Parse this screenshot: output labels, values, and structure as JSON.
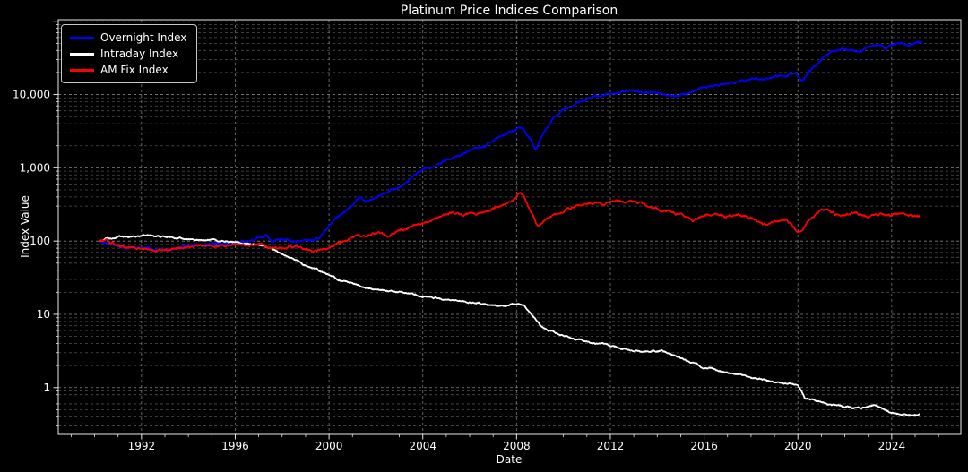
{
  "title": "Platinum Price Indices Comparison",
  "xlabel": "Date",
  "ylabel": "Index Value",
  "axes": {
    "x_major_ticks": [
      1992,
      1996,
      2000,
      2004,
      2008,
      2012,
      2016,
      2020,
      2024
    ],
    "x_tick_labels": [
      "1992",
      "1996",
      "2000",
      "2004",
      "2008",
      "2012",
      "2016",
      "2020",
      "2024"
    ],
    "y_major_ticks": [
      1,
      10,
      100,
      1000,
      10000
    ],
    "y_tick_labels": [
      "1",
      "10",
      "100",
      "1,000",
      "10,000"
    ],
    "background": "#000000",
    "text_color": "#ffffff",
    "grid_color": "#b0b0b0",
    "spine_color": "#e8e8e8"
  },
  "chart_data": {
    "type": "line",
    "title": "Platinum Price Indices Comparison",
    "xlabel": "Date",
    "ylabel": "Index Value",
    "x_scale": "linear",
    "y_scale": "log",
    "xlim": [
      1988.45,
      2026.95
    ],
    "ylim": [
      0.23,
      105000
    ],
    "grid": true,
    "grid_style": "dashed",
    "legend_position": "upper left",
    "background": "#000000",
    "series": [
      {
        "name": "Overnight Index",
        "color": "#0000ff",
        "noise": 0.016,
        "points": [
          [
            1990.2,
            100
          ],
          [
            1990.6,
            92
          ],
          [
            1991,
            84
          ],
          [
            1991.5,
            80
          ],
          [
            1992,
            80
          ],
          [
            1992.6,
            76
          ],
          [
            1993.2,
            76
          ],
          [
            1994,
            88
          ],
          [
            1995,
            90
          ],
          [
            1996,
            95
          ],
          [
            1996.8,
            103
          ],
          [
            1997.3,
            122
          ],
          [
            1997.6,
            100
          ],
          [
            1998,
            106
          ],
          [
            1998.6,
            96
          ],
          [
            1999,
            102
          ],
          [
            1999.6,
            112
          ],
          [
            2000,
            160
          ],
          [
            2000.3,
            210
          ],
          [
            2000.7,
            250
          ],
          [
            2001,
            300
          ],
          [
            2001.3,
            420
          ],
          [
            2001.6,
            360
          ],
          [
            2002,
            400
          ],
          [
            2002.5,
            480
          ],
          [
            2003,
            560
          ],
          [
            2003.5,
            720
          ],
          [
            2004,
            950
          ],
          [
            2004.5,
            1100
          ],
          [
            2005,
            1300
          ],
          [
            2005.5,
            1450
          ],
          [
            2006,
            1750
          ],
          [
            2006.6,
            1950
          ],
          [
            2007,
            2250
          ],
          [
            2007.5,
            2900
          ],
          [
            2008,
            3300
          ],
          [
            2008.25,
            3400
          ],
          [
            2008.6,
            2400
          ],
          [
            2008.8,
            1750
          ],
          [
            2009,
            2400
          ],
          [
            2009.5,
            4500
          ],
          [
            2010,
            6200
          ],
          [
            2010.5,
            7400
          ],
          [
            2011,
            8600
          ],
          [
            2011.5,
            9600
          ],
          [
            2012,
            10500
          ],
          [
            2012.5,
            11200
          ],
          [
            2013,
            11000
          ],
          [
            2013.5,
            10800
          ],
          [
            2014,
            10300
          ],
          [
            2014.7,
            9400
          ],
          [
            2015,
            9900
          ],
          [
            2015.5,
            10600
          ],
          [
            2016,
            12200
          ],
          [
            2016.5,
            13200
          ],
          [
            2017,
            14200
          ],
          [
            2017.5,
            15200
          ],
          [
            2018,
            16200
          ],
          [
            2018.5,
            16600
          ],
          [
            2019,
            17200
          ],
          [
            2019.6,
            18800
          ],
          [
            2019.9,
            19200
          ],
          [
            2020.2,
            15500
          ],
          [
            2020.5,
            21000
          ],
          [
            2021,
            30000
          ],
          [
            2021.5,
            38000
          ],
          [
            2021.9,
            41500
          ],
          [
            2022.3,
            39500
          ],
          [
            2022.6,
            38000
          ],
          [
            2023,
            46000
          ],
          [
            2023.3,
            48000
          ],
          [
            2023.7,
            43500
          ],
          [
            2024,
            47000
          ],
          [
            2024.4,
            50000
          ],
          [
            2024.7,
            46000
          ],
          [
            2025,
            50000
          ],
          [
            2025.3,
            53000
          ]
        ]
      },
      {
        "name": "Intraday Index",
        "color": "#ffffff",
        "noise": 0.012,
        "points": [
          [
            1990.2,
            100
          ],
          [
            1990.5,
            108
          ],
          [
            1991,
            112
          ],
          [
            1991.7,
            116
          ],
          [
            1992,
            118
          ],
          [
            1993,
            115
          ],
          [
            1994,
            107
          ],
          [
            1995,
            102
          ],
          [
            1996,
            97
          ],
          [
            1996.6,
            92
          ],
          [
            1997,
            89
          ],
          [
            1997.5,
            80
          ],
          [
            1998,
            66
          ],
          [
            1998.5,
            56
          ],
          [
            1999,
            47
          ],
          [
            1999.5,
            40
          ],
          [
            2000,
            34
          ],
          [
            2000.5,
            29
          ],
          [
            2001,
            27
          ],
          [
            2001.5,
            24
          ],
          [
            2002,
            21.5
          ],
          [
            2002.8,
            20.4
          ],
          [
            2003.5,
            19
          ],
          [
            2004,
            17.7
          ],
          [
            2005,
            15.8
          ],
          [
            2006,
            15
          ],
          [
            2007,
            13
          ],
          [
            2007.8,
            13.7
          ],
          [
            2008.3,
            13.2
          ],
          [
            2008.7,
            9.5
          ],
          [
            2009,
            6.8
          ],
          [
            2009.5,
            6.0
          ],
          [
            2010,
            5.1
          ],
          [
            2011,
            4.3
          ],
          [
            2012,
            3.7
          ],
          [
            2013,
            3.2
          ],
          [
            2014,
            3.1
          ],
          [
            2014.2,
            3.2
          ],
          [
            2015,
            2.55
          ],
          [
            2015.7,
            2.05
          ],
          [
            2016,
            1.78
          ],
          [
            2016.3,
            1.9
          ],
          [
            2017,
            1.55
          ],
          [
            2017.6,
            1.5
          ],
          [
            2018,
            1.38
          ],
          [
            2018.6,
            1.26
          ],
          [
            2019,
            1.19
          ],
          [
            2019.6,
            1.15
          ],
          [
            2020,
            1.1
          ],
          [
            2020.3,
            0.72
          ],
          [
            2021,
            0.63
          ],
          [
            2022,
            0.54
          ],
          [
            2022.6,
            0.52
          ],
          [
            2023.3,
            0.59
          ],
          [
            2024,
            0.45
          ],
          [
            2024.6,
            0.43
          ],
          [
            2025.2,
            0.42
          ]
        ]
      },
      {
        "name": "AM Fix Index",
        "color": "#ff0000",
        "noise": 0.018,
        "points": [
          [
            1990.2,
            100
          ],
          [
            1990.5,
            103
          ],
          [
            1991,
            85
          ],
          [
            1991.5,
            80
          ],
          [
            1992,
            77
          ],
          [
            1992.6,
            73
          ],
          [
            1993,
            76
          ],
          [
            1994,
            84
          ],
          [
            1995,
            87
          ],
          [
            1996,
            91
          ],
          [
            1996.5,
            88
          ],
          [
            1997,
            90
          ],
          [
            1997.4,
            82
          ],
          [
            1998,
            79
          ],
          [
            1998.4,
            85
          ],
          [
            1999,
            76
          ],
          [
            1999.5,
            73
          ],
          [
            2000,
            82
          ],
          [
            2000.5,
            95
          ],
          [
            2001,
            108
          ],
          [
            2001.5,
            122
          ],
          [
            2002,
            128
          ],
          [
            2002.5,
            120
          ],
          [
            2003,
            135
          ],
          [
            2003.5,
            160
          ],
          [
            2004,
            178
          ],
          [
            2004.5,
            200
          ],
          [
            2005,
            225
          ],
          [
            2005.3,
            240
          ],
          [
            2005.7,
            220
          ],
          [
            2006,
            235
          ],
          [
            2006.5,
            250
          ],
          [
            2007,
            280
          ],
          [
            2007.5,
            320
          ],
          [
            2007.9,
            355
          ],
          [
            2008.1,
            460
          ],
          [
            2008.3,
            420
          ],
          [
            2008.5,
            290
          ],
          [
            2008.9,
            160
          ],
          [
            2009.3,
            200
          ],
          [
            2009.6,
            225
          ],
          [
            2010,
            255
          ],
          [
            2010.5,
            300
          ],
          [
            2011,
            330
          ],
          [
            2011.3,
            345
          ],
          [
            2011.7,
            310
          ],
          [
            2012,
            340
          ],
          [
            2012.5,
            352
          ],
          [
            2013,
            335
          ],
          [
            2013.5,
            317
          ],
          [
            2014,
            275
          ],
          [
            2014.5,
            258
          ],
          [
            2015,
            226
          ],
          [
            2015.5,
            186
          ],
          [
            2016,
            226
          ],
          [
            2016.5,
            236
          ],
          [
            2017,
            214
          ],
          [
            2017.5,
            222
          ],
          [
            2018,
            208
          ],
          [
            2018.5,
            170
          ],
          [
            2019,
            186
          ],
          [
            2019.5,
            192
          ],
          [
            2020.1,
            130
          ],
          [
            2020.5,
            196
          ],
          [
            2021,
            262
          ],
          [
            2021.2,
            275
          ],
          [
            2021.6,
            225
          ],
          [
            2022,
            228
          ],
          [
            2022.5,
            242
          ],
          [
            2023,
            214
          ],
          [
            2023.5,
            230
          ],
          [
            2024,
            214
          ],
          [
            2024.3,
            238
          ],
          [
            2024.7,
            215
          ],
          [
            2025.2,
            222
          ]
        ]
      }
    ]
  }
}
